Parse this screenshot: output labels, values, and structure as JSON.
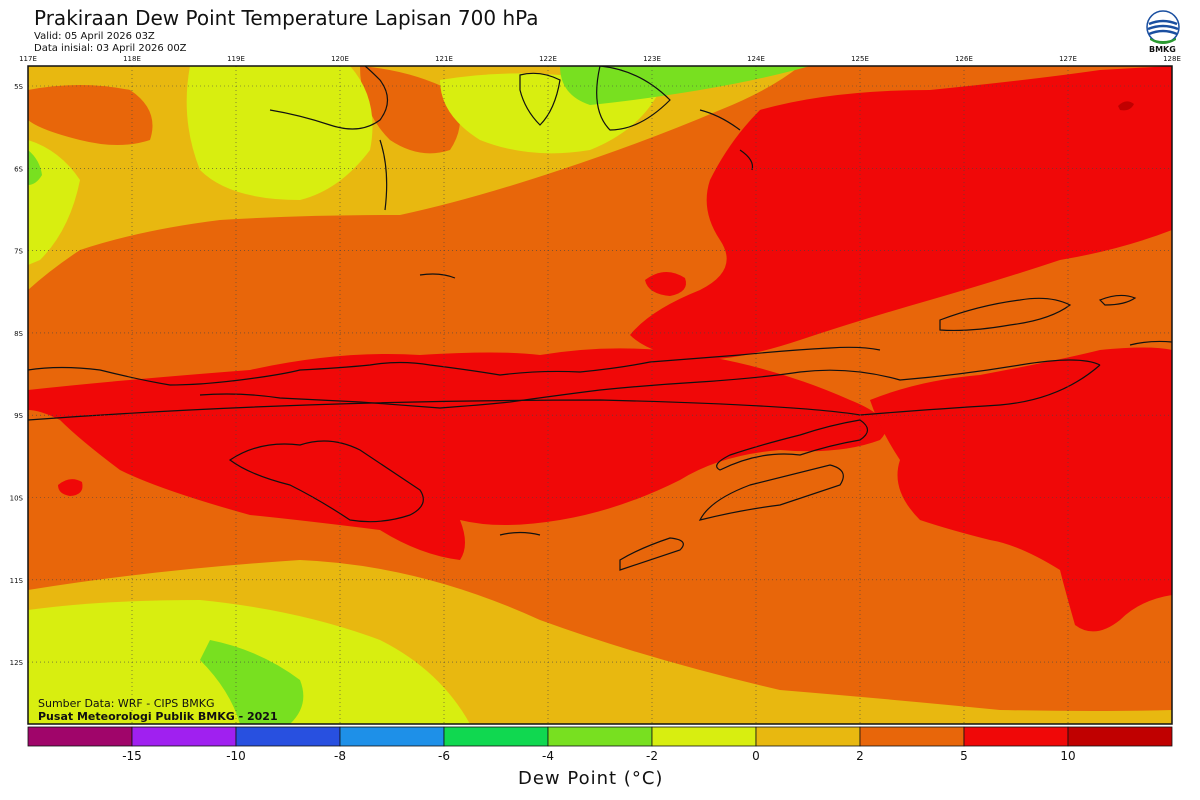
{
  "title": "Prakiraan Dew Point Temperature Lapisan 700 hPa",
  "valid": "Valid: 05 April 2026 03Z",
  "initial": "Data inisial: 03 April 2026 00Z",
  "logo_text": "BMKG",
  "credits": {
    "source": "Sumber Data: WRF - CIPS BMKG",
    "org": "Pusat Meteorologi Publik BMKG - 2021"
  },
  "map": {
    "lon_labels": [
      "117E",
      "118E",
      "119E",
      "120E",
      "121E",
      "122E",
      "123E",
      "124E",
      "125E",
      "126E",
      "127E",
      "128E"
    ],
    "lat_labels": [
      "5S",
      "6S",
      "7S",
      "8S",
      "9S",
      "10S",
      "11S",
      "12S"
    ]
  },
  "colorbar": {
    "title": "Dew Point (°C)",
    "labels": [
      "-15",
      "-10",
      "-8",
      "-6",
      "-4",
      "-2",
      "0",
      "2",
      "5",
      "10"
    ],
    "colors": [
      "#a0056a",
      "#a020f0",
      "#2850e0",
      "#1e90e8",
      "#10d850",
      "#78e020",
      "#d8ee10",
      "#e8b810",
      "#e8660a",
      "#f00808",
      "#c00000"
    ]
  }
}
